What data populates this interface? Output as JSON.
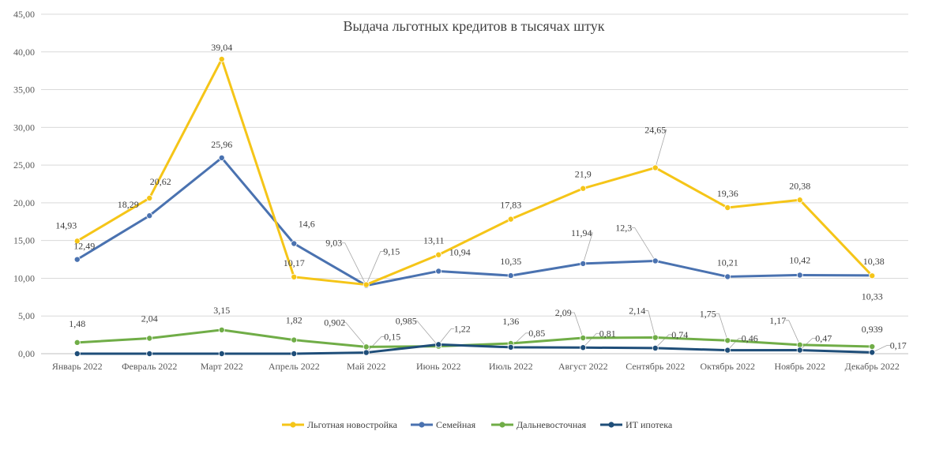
{
  "chart_data": {
    "type": "line",
    "title": "Выдача  льготных кредитов в тысячах штук",
    "categories": [
      "Январь 2022",
      "Февраль 2022",
      "Март 2022",
      "Апрель 2022",
      "Май 2022",
      "Июнь 2022",
      "Июль 2022",
      "Август 2022",
      "Сентябрь 2022",
      "Октябрь 2022",
      "Ноябрь 2022",
      "Декабрь 2022"
    ],
    "y_ticks": [
      "0,00",
      "5,00",
      "10,00",
      "15,00",
      "20,00",
      "25,00",
      "30,00",
      "35,00",
      "40,00",
      "45,00"
    ],
    "ylim": [
      0,
      45
    ],
    "grid": "horizontal",
    "legend_position": "bottom",
    "series": [
      {
        "name": "Льготная новостройка",
        "color": "#F5C518",
        "values": [
          14.93,
          20.62,
          39.04,
          10.17,
          9.15,
          13.11,
          17.83,
          21.9,
          24.65,
          19.36,
          20.38,
          10.33
        ],
        "labels": [
          "14,93",
          "20,62",
          "39,04",
          "10,17",
          "9,15",
          "13,11",
          "17,83",
          "21,9",
          "24,65",
          "19,36",
          "20,38",
          "10,33"
        ]
      },
      {
        "name": "Семейная",
        "color": "#4A72B0",
        "values": [
          12.49,
          18.29,
          25.96,
          14.6,
          9.03,
          10.94,
          10.35,
          11.94,
          12.3,
          10.21,
          10.42,
          10.38
        ],
        "labels": [
          "12,49",
          "18,29",
          "25,96",
          "14,6",
          "9,03",
          "10,94",
          "10,35",
          "11,94",
          "12,3",
          "10,21",
          "10,42",
          "10,38"
        ]
      },
      {
        "name": "Дальневосточная",
        "color": "#70AD47",
        "values": [
          1.48,
          2.04,
          3.15,
          1.82,
          0.902,
          0.985,
          1.36,
          2.09,
          2.14,
          1.75,
          1.17,
          0.939
        ],
        "labels": [
          "1,48",
          "2,04",
          "3,15",
          "1,82",
          "0,902",
          "0,985",
          "1,36",
          "2,09",
          "2,14",
          "1,75",
          "1,17",
          "0,939"
        ]
      },
      {
        "name": "ИТ ипотека",
        "color": "#1F4E79",
        "values": [
          0,
          0,
          0,
          0,
          0.15,
          1.22,
          0.85,
          0.81,
          0.74,
          0.46,
          0.47,
          0.17
        ],
        "labels": [
          "",
          "",
          "",
          "",
          "0,15",
          "1,22",
          "0,85",
          "0,81",
          "0,74",
          "0,46",
          "0,47",
          "0,17"
        ]
      }
    ]
  }
}
